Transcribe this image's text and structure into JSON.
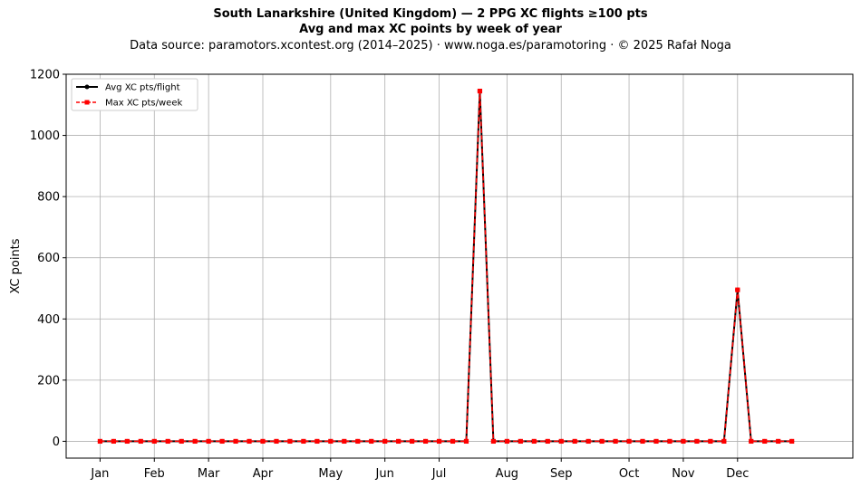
{
  "chart_data": {
    "type": "line",
    "title": "South Lanarkshire (United Kingdom)  —  2 PPG XC flights ≥100 pts",
    "subtitle": "Avg and max XC points by week of year",
    "source": "Data source: paramotors.xcontest.org (2014–2025)  ·  www.noga.es/paramotoring  ·  © 2025 Rafał Noga",
    "ylabel": "XC points",
    "xlabel": "",
    "ylim": [
      -55,
      1200
    ],
    "xlim": [
      -2.5,
      55.5
    ],
    "yticks": [
      0,
      200,
      400,
      600,
      800,
      1000,
      1200
    ],
    "xticks": [
      {
        "label": "Jan",
        "week": 0
      },
      {
        "label": "Feb",
        "week": 4
      },
      {
        "label": "Mar",
        "week": 8
      },
      {
        "label": "Apr",
        "week": 12
      },
      {
        "label": "May",
        "week": 17
      },
      {
        "label": "Jun",
        "week": 21
      },
      {
        "label": "Jul",
        "week": 25
      },
      {
        "label": "Aug",
        "week": 30
      },
      {
        "label": "Sep",
        "week": 34
      },
      {
        "label": "Oct",
        "week": 39
      },
      {
        "label": "Nov",
        "week": 43
      },
      {
        "label": "Dec",
        "week": 47
      }
    ],
    "grid": true,
    "legend_position": "top-left",
    "x": [
      0,
      1,
      2,
      3,
      4,
      5,
      6,
      7,
      8,
      9,
      10,
      11,
      12,
      13,
      14,
      15,
      16,
      17,
      18,
      19,
      20,
      21,
      22,
      23,
      24,
      25,
      26,
      27,
      28,
      29,
      30,
      31,
      32,
      33,
      34,
      35,
      36,
      37,
      38,
      39,
      40,
      41,
      42,
      43,
      44,
      45,
      46,
      47,
      48,
      49,
      50,
      51
    ],
    "series": [
      {
        "name": "Avg XC pts/flight",
        "color": "#000000",
        "style": "solid",
        "marker": "circle",
        "values": [
          0,
          0,
          0,
          0,
          0,
          0,
          0,
          0,
          0,
          0,
          0,
          0,
          0,
          0,
          0,
          0,
          0,
          0,
          0,
          0,
          0,
          0,
          0,
          0,
          0,
          0,
          0,
          0,
          1145,
          0,
          0,
          0,
          0,
          0,
          0,
          0,
          0,
          0,
          0,
          0,
          0,
          0,
          0,
          0,
          0,
          0,
          0,
          495,
          0,
          0,
          0,
          0
        ]
      },
      {
        "name": "Max XC pts/week",
        "color": "#ff0000",
        "style": "dashed",
        "marker": "square",
        "values": [
          0,
          0,
          0,
          0,
          0,
          0,
          0,
          0,
          0,
          0,
          0,
          0,
          0,
          0,
          0,
          0,
          0,
          0,
          0,
          0,
          0,
          0,
          0,
          0,
          0,
          0,
          0,
          0,
          1145,
          0,
          0,
          0,
          0,
          0,
          0,
          0,
          0,
          0,
          0,
          0,
          0,
          0,
          0,
          0,
          0,
          0,
          0,
          495,
          0,
          0,
          0,
          0
        ]
      }
    ]
  }
}
